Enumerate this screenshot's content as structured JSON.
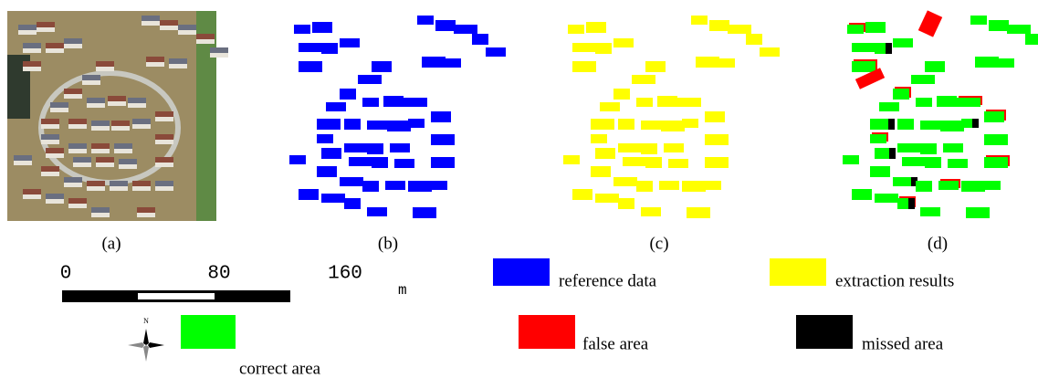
{
  "panels": [
    {
      "label": "(a)"
    },
    {
      "label": "(b)"
    },
    {
      "label": "(c)"
    },
    {
      "label": "(d)"
    }
  ],
  "scale_bar": {
    "ticks": [
      0,
      80,
      160
    ],
    "unit": "m"
  },
  "north_label": "N",
  "legend": [
    {
      "label": "reference data",
      "color": "#0000ff"
    },
    {
      "label": "extraction results",
      "color": "#ffff00"
    },
    {
      "label": "false area",
      "color": "#ff0000"
    },
    {
      "label": "missed area",
      "color": "#000000"
    },
    {
      "label": "correct area",
      "color": "#00ff00"
    }
  ]
}
